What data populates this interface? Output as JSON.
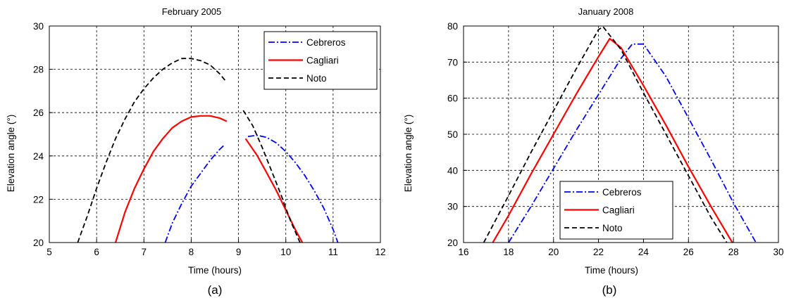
{
  "colors": {
    "Cebreros": "#0000ff",
    "Cagliari": "#ff0000",
    "Noto": "#000000",
    "grid": "#000000",
    "background": "#ffffff"
  },
  "chart_data": [
    {
      "type": "line",
      "panel_label": "(a)",
      "title": "February 2005",
      "xlabel": "Time (hours)",
      "ylabel": "Elevation angle (°)",
      "xlim": [
        5,
        12
      ],
      "ylim": [
        20,
        30
      ],
      "xticks": [
        5,
        6,
        7,
        8,
        9,
        10,
        11,
        12
      ],
      "yticks": [
        20,
        22,
        24,
        26,
        28,
        30
      ],
      "grid": true,
      "legend_position": "top-right",
      "legend": [
        "Cebreros",
        "Cagliari",
        "Noto"
      ],
      "series": [
        {
          "name": "Cebreros",
          "style": "dash-dot",
          "color": "#0000ff",
          "segments": [
            {
              "x": [
                7.45,
                7.6,
                7.8,
                8.0,
                8.2,
                8.4,
                8.6,
                8.7
              ],
              "y": [
                20.0,
                20.9,
                21.8,
                22.6,
                23.2,
                23.8,
                24.3,
                24.5
              ]
            },
            {
              "x": [
                9.2,
                9.4,
                9.6,
                9.8,
                10.0,
                10.2,
                10.4,
                10.6,
                10.8,
                11.0,
                11.1
              ],
              "y": [
                24.9,
                24.95,
                24.85,
                24.6,
                24.2,
                23.7,
                23.1,
                22.4,
                21.6,
                20.6,
                20.0
              ]
            }
          ]
        },
        {
          "name": "Cagliari",
          "style": "solid",
          "color": "#ff0000",
          "segments": [
            {
              "x": [
                6.4,
                6.6,
                6.8,
                7.0,
                7.2,
                7.4,
                7.6,
                7.8,
                8.0,
                8.2,
                8.4,
                8.6,
                8.75
              ],
              "y": [
                20.0,
                21.4,
                22.5,
                23.4,
                24.2,
                24.8,
                25.3,
                25.6,
                25.8,
                25.85,
                25.85,
                25.75,
                25.6
              ]
            },
            {
              "x": [
                9.15,
                9.4,
                9.6,
                9.8,
                10.0,
                10.2,
                10.35
              ],
              "y": [
                24.8,
                24.0,
                23.2,
                22.4,
                21.5,
                20.6,
                20.0
              ]
            }
          ]
        },
        {
          "name": "Noto",
          "style": "dashed",
          "color": "#000000",
          "segments": [
            {
              "x": [
                5.6,
                5.8,
                6.0,
                6.2,
                6.4,
                6.6,
                6.8,
                7.0,
                7.2,
                7.4,
                7.6,
                7.8,
                8.0,
                8.2,
                8.4,
                8.6,
                8.75
              ],
              "y": [
                20.0,
                21.2,
                22.5,
                23.7,
                24.8,
                25.7,
                26.5,
                27.1,
                27.6,
                28.0,
                28.3,
                28.5,
                28.5,
                28.4,
                28.2,
                27.8,
                27.4
              ]
            },
            {
              "x": [
                9.1,
                9.3,
                9.5,
                9.7,
                9.9,
                10.1,
                10.3
              ],
              "y": [
                26.1,
                25.4,
                24.4,
                23.3,
                22.2,
                21.0,
                20.0
              ]
            }
          ]
        }
      ]
    },
    {
      "type": "line",
      "panel_label": "(b)",
      "title": "January 2008",
      "xlabel": "Time (hours)",
      "ylabel": "Elevation angle (°)",
      "xlim": [
        16,
        30
      ],
      "ylim": [
        20,
        80
      ],
      "xticks": [
        16,
        18,
        20,
        22,
        24,
        26,
        28,
        30
      ],
      "yticks": [
        20,
        30,
        40,
        50,
        60,
        70,
        80
      ],
      "grid": true,
      "legend_position": "bottom-center",
      "legend": [
        "Cebreros",
        "Cagliari",
        "Noto"
      ],
      "series": [
        {
          "name": "Cebreros",
          "style": "dash-dot",
          "color": "#0000ff",
          "segments": [
            {
              "x": [
                18.0,
                19.0,
                20.0,
                21.0,
                22.0,
                23.0,
                23.5,
                24.0,
                25.0,
                26.0,
                27.0,
                28.0,
                29.0
              ],
              "y": [
                20.0,
                30.0,
                40.5,
                51.0,
                61.0,
                71.0,
                75.0,
                75.0,
                66.0,
                54.5,
                43.0,
                31.0,
                20.0
              ]
            }
          ]
        },
        {
          "name": "Cagliari",
          "style": "solid",
          "color": "#ff0000",
          "segments": [
            {
              "x": [
                17.3,
                18.0,
                19.0,
                20.0,
                21.0,
                22.0,
                22.5,
                23.0,
                24.0,
                25.0,
                26.0,
                27.0,
                28.0
              ],
              "y": [
                20.0,
                27.5,
                39.0,
                50.0,
                61.0,
                71.5,
                76.5,
                74.0,
                63.5,
                52.5,
                41.0,
                30.0,
                19.5
              ]
            }
          ]
        },
        {
          "name": "Noto",
          "style": "dashed",
          "color": "#000000",
          "segments": [
            {
              "x": [
                16.9,
                18.0,
                19.0,
                20.0,
                21.0,
                22.0,
                22.2,
                23.0,
                24.0,
                25.0,
                26.0,
                27.0,
                27.7
              ],
              "y": [
                20.0,
                33.0,
                45.0,
                56.5,
                68.0,
                79.0,
                79.8,
                73.5,
                61.5,
                50.0,
                38.5,
                27.0,
                20.0
              ]
            }
          ]
        }
      ]
    }
  ]
}
